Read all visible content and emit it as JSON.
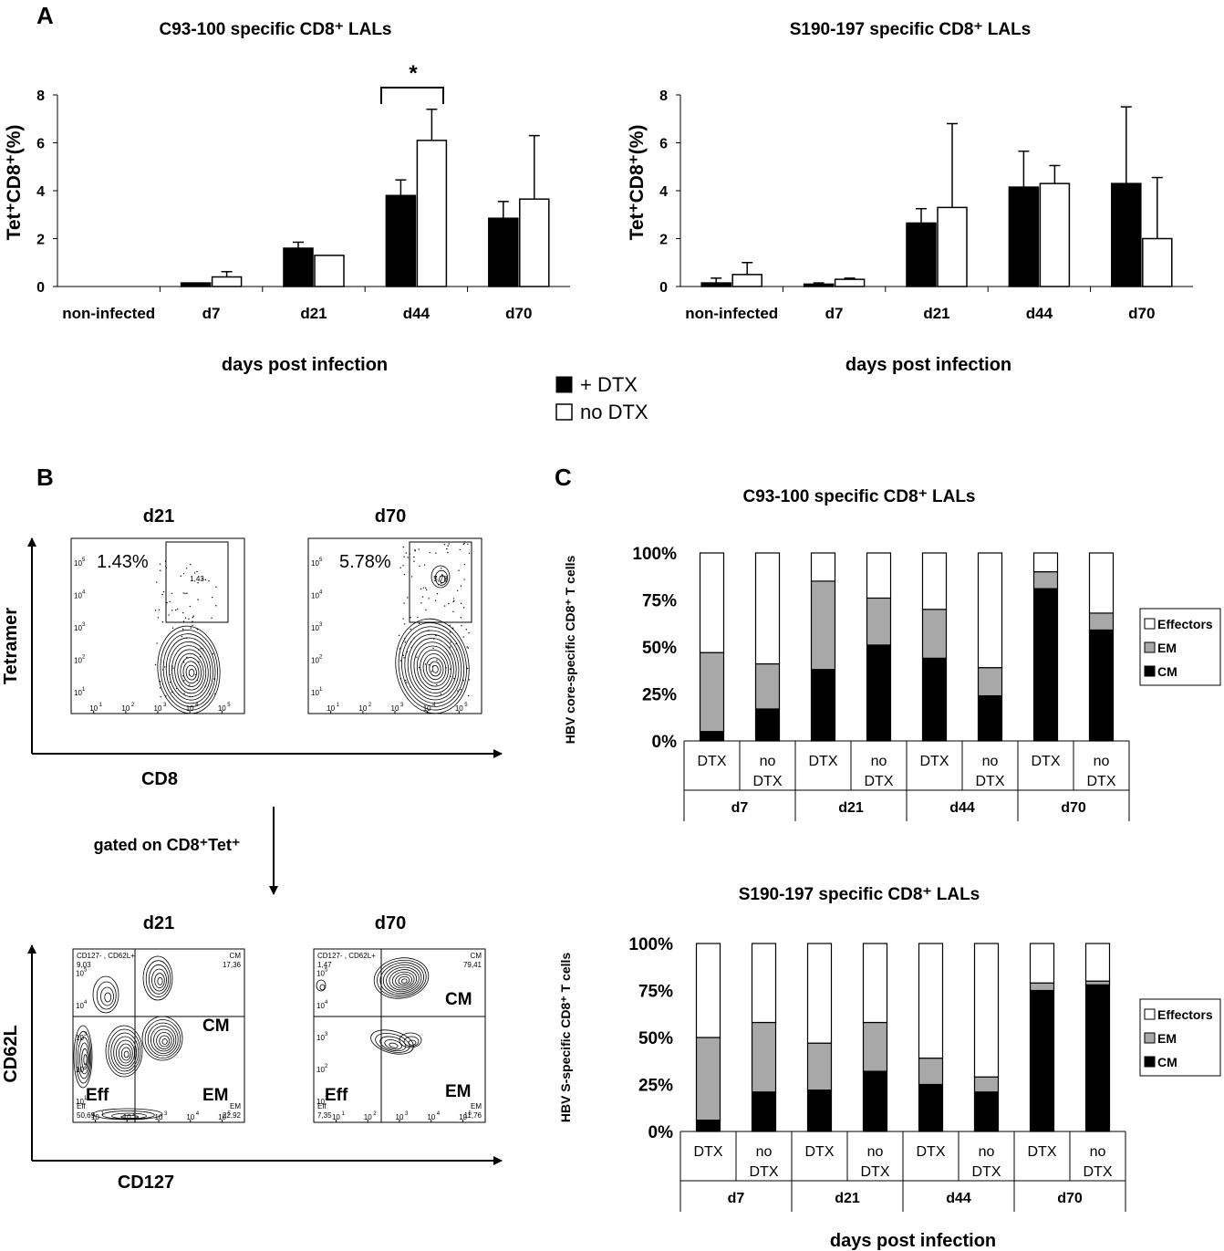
{
  "panels": {
    "a": "A",
    "b": "B",
    "c": "C"
  },
  "legend_a": {
    "dtx": "+ DTX",
    "nodtx": "no DTX",
    "colors": {
      "dtx": "#000000",
      "nodtx": "#ffffff"
    }
  },
  "flow": {
    "top_days": [
      "d21",
      "d70"
    ],
    "top_pct": [
      "1.43%",
      "5.78%"
    ],
    "top_gate_values": [
      "1,43",
      "5,78"
    ],
    "top_ylabel": "Tetramer",
    "top_xlabel": "CD8",
    "tick_labels": [
      "10",
      "1",
      "10",
      "2",
      "10",
      "3",
      "10",
      "4",
      "10",
      "5"
    ],
    "gating_text": "gated on CD8⁺Tet⁺",
    "bottom_days": [
      "d21",
      "d70"
    ],
    "bottom_ylabel": "CD62L",
    "bottom_xlabel": "CD127",
    "q_labels": {
      "cm": "CM",
      "em": "EM",
      "eff": "Eff"
    },
    "q_small": {
      "tl_name": "CD127- , CD62L+",
      "cm": "CM",
      "em": "EM",
      "eff": "Eff",
      "d21": {
        "tl": "9,03",
        "tr": "17,36",
        "bl": "50,69",
        "br": "22,92"
      },
      "d70": {
        "tl": "1,47",
        "tr": "79,41",
        "bl": "7,35",
        "br": "11,76"
      }
    }
  },
  "chart_data": [
    {
      "type": "bar",
      "title": "C93-100 specific CD8⁺ LALs",
      "xlabel": "days post infection",
      "ylabel": "Tet⁺CD8⁺(%)",
      "categories": [
        "non-infected",
        "d7",
        "d21",
        "d44",
        "d70"
      ],
      "series": [
        {
          "name": "+ DTX",
          "values": [
            0.0,
            0.15,
            1.6,
            3.8,
            2.85
          ],
          "err": [
            0.0,
            0.0,
            0.25,
            0.65,
            0.7
          ]
        },
        {
          "name": "no DTX",
          "values": [
            0.0,
            0.4,
            1.3,
            6.1,
            3.65
          ],
          "err": [
            0.0,
            0.22,
            0.0,
            1.3,
            2.65
          ]
        }
      ],
      "ylim": [
        0,
        8
      ],
      "yticks": [
        0,
        2,
        4,
        6,
        8
      ],
      "annotations": [
        {
          "text": "*",
          "between": "d44"
        }
      ]
    },
    {
      "type": "bar",
      "title": "S190-197 specific CD8⁺ LALs",
      "xlabel": "days post infection",
      "ylabel": "Tet⁺CD8⁺(%)",
      "categories": [
        "non-infected",
        "d7",
        "d21",
        "d44",
        "d70"
      ],
      "series": [
        {
          "name": "+ DTX",
          "values": [
            0.15,
            0.1,
            2.65,
            4.15,
            4.3
          ],
          "err": [
            0.2,
            0.05,
            0.6,
            1.5,
            3.2
          ]
        },
        {
          "name": "no DTX",
          "values": [
            0.5,
            0.3,
            3.3,
            4.3,
            2.0
          ],
          "err": [
            0.5,
            0.05,
            3.5,
            0.75,
            2.55
          ]
        }
      ],
      "ylim": [
        0,
        8
      ],
      "yticks": [
        0,
        2,
        4,
        6,
        8
      ]
    },
    {
      "type": "bar",
      "stacked": true,
      "title": "C93-100 specific CD8⁺ LALs",
      "ylabel": "HBV core-specific CD8⁺ T cells",
      "categories": [
        [
          "DTX"
        ],
        [
          "no",
          "DTX"
        ],
        [
          "DTX"
        ],
        [
          "no",
          "DTX"
        ],
        [
          "DTX"
        ],
        [
          "no",
          "DTX"
        ],
        [
          "DTX"
        ],
        [
          "no",
          "DTX"
        ]
      ],
      "groups": [
        "d7",
        "d21",
        "d44",
        "d70"
      ],
      "yticks": [
        "0%",
        "25%",
        "50%",
        "75%",
        "100%"
      ],
      "series": [
        {
          "name": "CM",
          "values": [
            5,
            17,
            38,
            51,
            44,
            24,
            81,
            59
          ]
        },
        {
          "name": "EM",
          "values": [
            42,
            24,
            47,
            25,
            26,
            15,
            9,
            9
          ]
        },
        {
          "name": "Effectors",
          "values": [
            53,
            59,
            15,
            24,
            30,
            61,
            10,
            32
          ]
        }
      ],
      "legend": [
        "Effectors",
        "EM",
        "CM"
      ]
    },
    {
      "type": "bar",
      "stacked": true,
      "title": "S190-197 specific CD8⁺ LALs",
      "ylabel": "HBV S-specific CD8⁺ T cells",
      "xlabel": "days post infection",
      "categories": [
        [
          "DTX"
        ],
        [
          "no",
          "DTX"
        ],
        [
          "DTX"
        ],
        [
          "no",
          "DTX"
        ],
        [
          "DTX"
        ],
        [
          "no",
          "DTX"
        ],
        [
          "DTX"
        ],
        [
          "no",
          "DTX"
        ]
      ],
      "groups": [
        "d7",
        "d21",
        "d44",
        "d70"
      ],
      "yticks": [
        "0%",
        "25%",
        "50%",
        "75%",
        "100%"
      ],
      "series": [
        {
          "name": "CM",
          "values": [
            6,
            21,
            22,
            32,
            25,
            21,
            75,
            78
          ]
        },
        {
          "name": "EM",
          "values": [
            44,
            37,
            25,
            26,
            14,
            8,
            4,
            2
          ]
        },
        {
          "name": "Effectors",
          "values": [
            50,
            42,
            53,
            42,
            61,
            71,
            21,
            20
          ]
        }
      ],
      "legend": [
        "Effectors",
        "EM",
        "CM"
      ]
    }
  ]
}
